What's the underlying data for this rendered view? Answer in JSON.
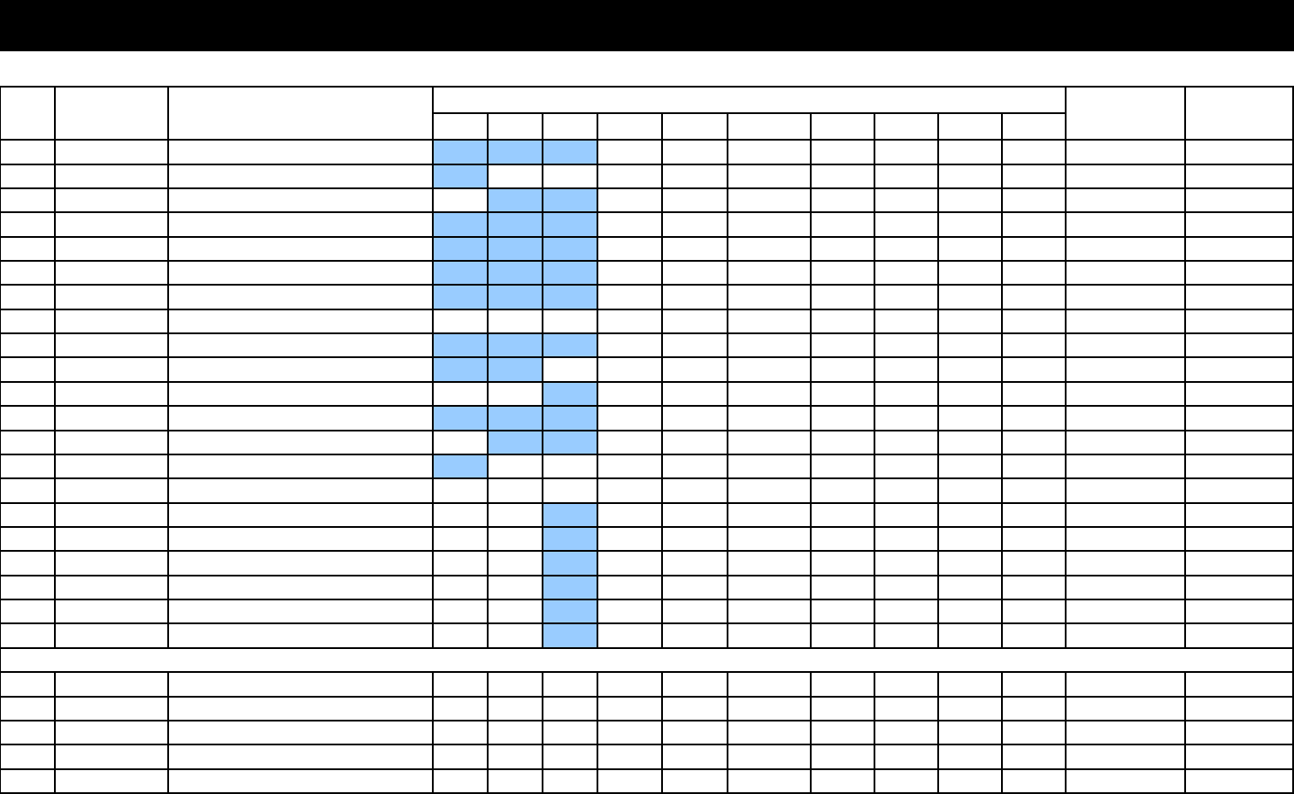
{
  "highlight_color": "#99ccff",
  "table": {
    "header_cells_text": [],
    "body_rows_highlight": [
      [
        1,
        1,
        1
      ],
      [
        1,
        0,
        0
      ],
      [
        0,
        1,
        1
      ],
      [
        1,
        1,
        1
      ],
      [
        1,
        1,
        1
      ],
      [
        1,
        1,
        1
      ],
      [
        1,
        1,
        1
      ],
      [
        0,
        0,
        0
      ],
      [
        1,
        1,
        1
      ],
      [
        1,
        1,
        0
      ],
      [
        0,
        0,
        1
      ],
      [
        1,
        1,
        1
      ],
      [
        0,
        1,
        1
      ],
      [
        1,
        0,
        0
      ],
      [
        0,
        0,
        0
      ],
      [
        0,
        0,
        1
      ],
      [
        0,
        0,
        1
      ],
      [
        0,
        0,
        1
      ],
      [
        0,
        0,
        1
      ],
      [
        0,
        0,
        1
      ],
      [
        0,
        0,
        1
      ]
    ],
    "lower_rows_count": 5
  }
}
